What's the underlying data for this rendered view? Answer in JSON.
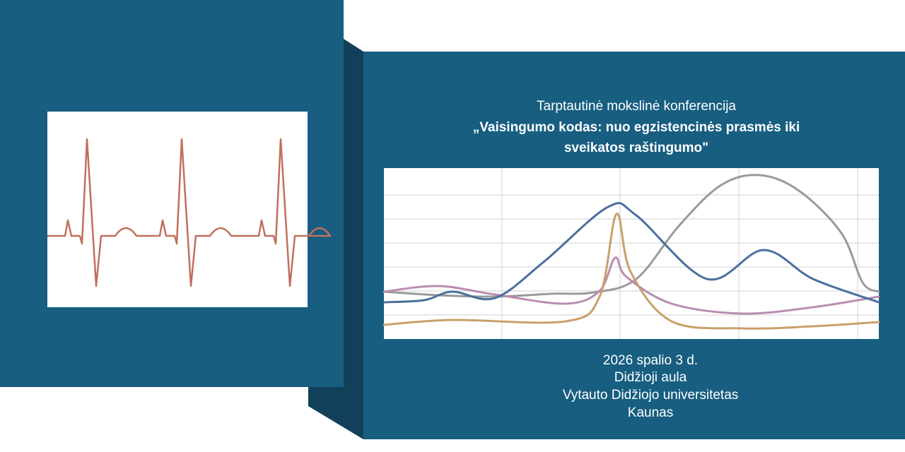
{
  "header": {
    "subtitle": "Tarptautinė mokslinė konferencija",
    "title_lines": [
      "„Vaisingumo kodas: nuo egzistencinės prasmės iki",
      "sveikatos raštingumo\""
    ]
  },
  "details": [
    "2026 spalio 3 d.",
    "Didžioji aula",
    "Vytauto Didžiojo universitetas",
    "Kaunas"
  ]
}
